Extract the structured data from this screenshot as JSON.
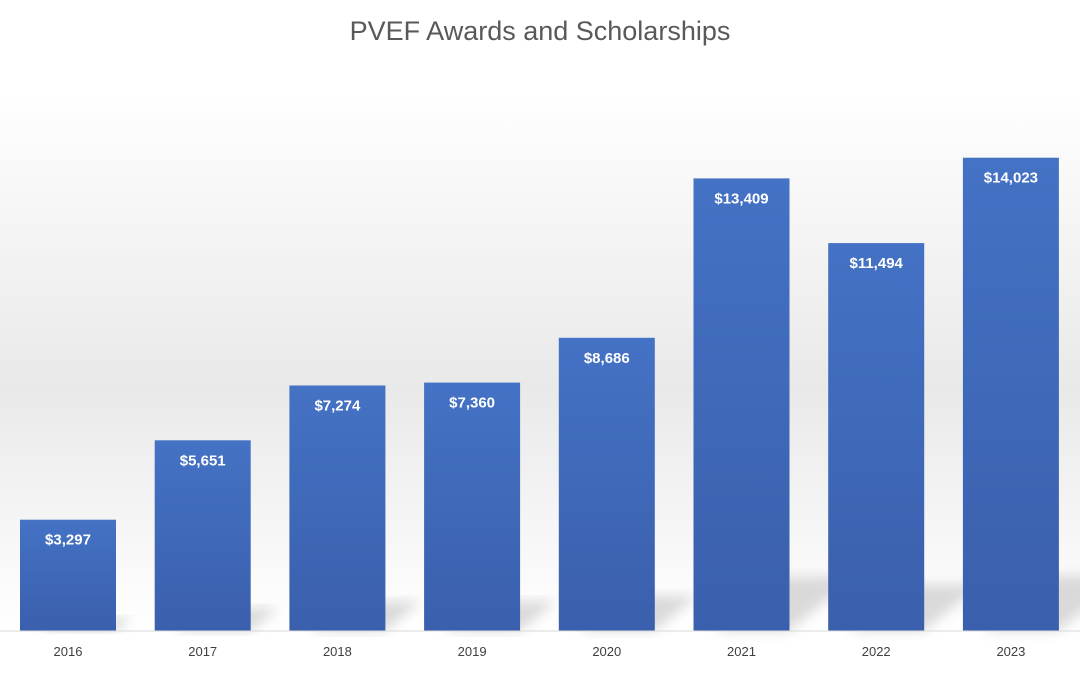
{
  "chart_data": {
    "type": "bar",
    "title": "PVEF Awards and Scholarships",
    "xlabel": "",
    "ylabel": "",
    "categories": [
      "2016",
      "2017",
      "2018",
      "2019",
      "2020",
      "2021",
      "2022",
      "2023"
    ],
    "values": [
      3297,
      5651,
      7274,
      7360,
      8686,
      13409,
      11494,
      14023
    ],
    "data_labels": [
      "$3,297",
      "$5,651",
      "$7,274",
      "$7,360",
      "$8,686",
      "$13,409",
      "$11,494",
      "$14,023"
    ],
    "ylim": [
      0,
      16000
    ],
    "grid": false,
    "legend": "none",
    "colors": {
      "bar_top": "#4472C4",
      "bar_bottom": "#3A5FAD",
      "title": "#595959",
      "tick": "#404040",
      "axis": "#D9D9D9"
    }
  }
}
